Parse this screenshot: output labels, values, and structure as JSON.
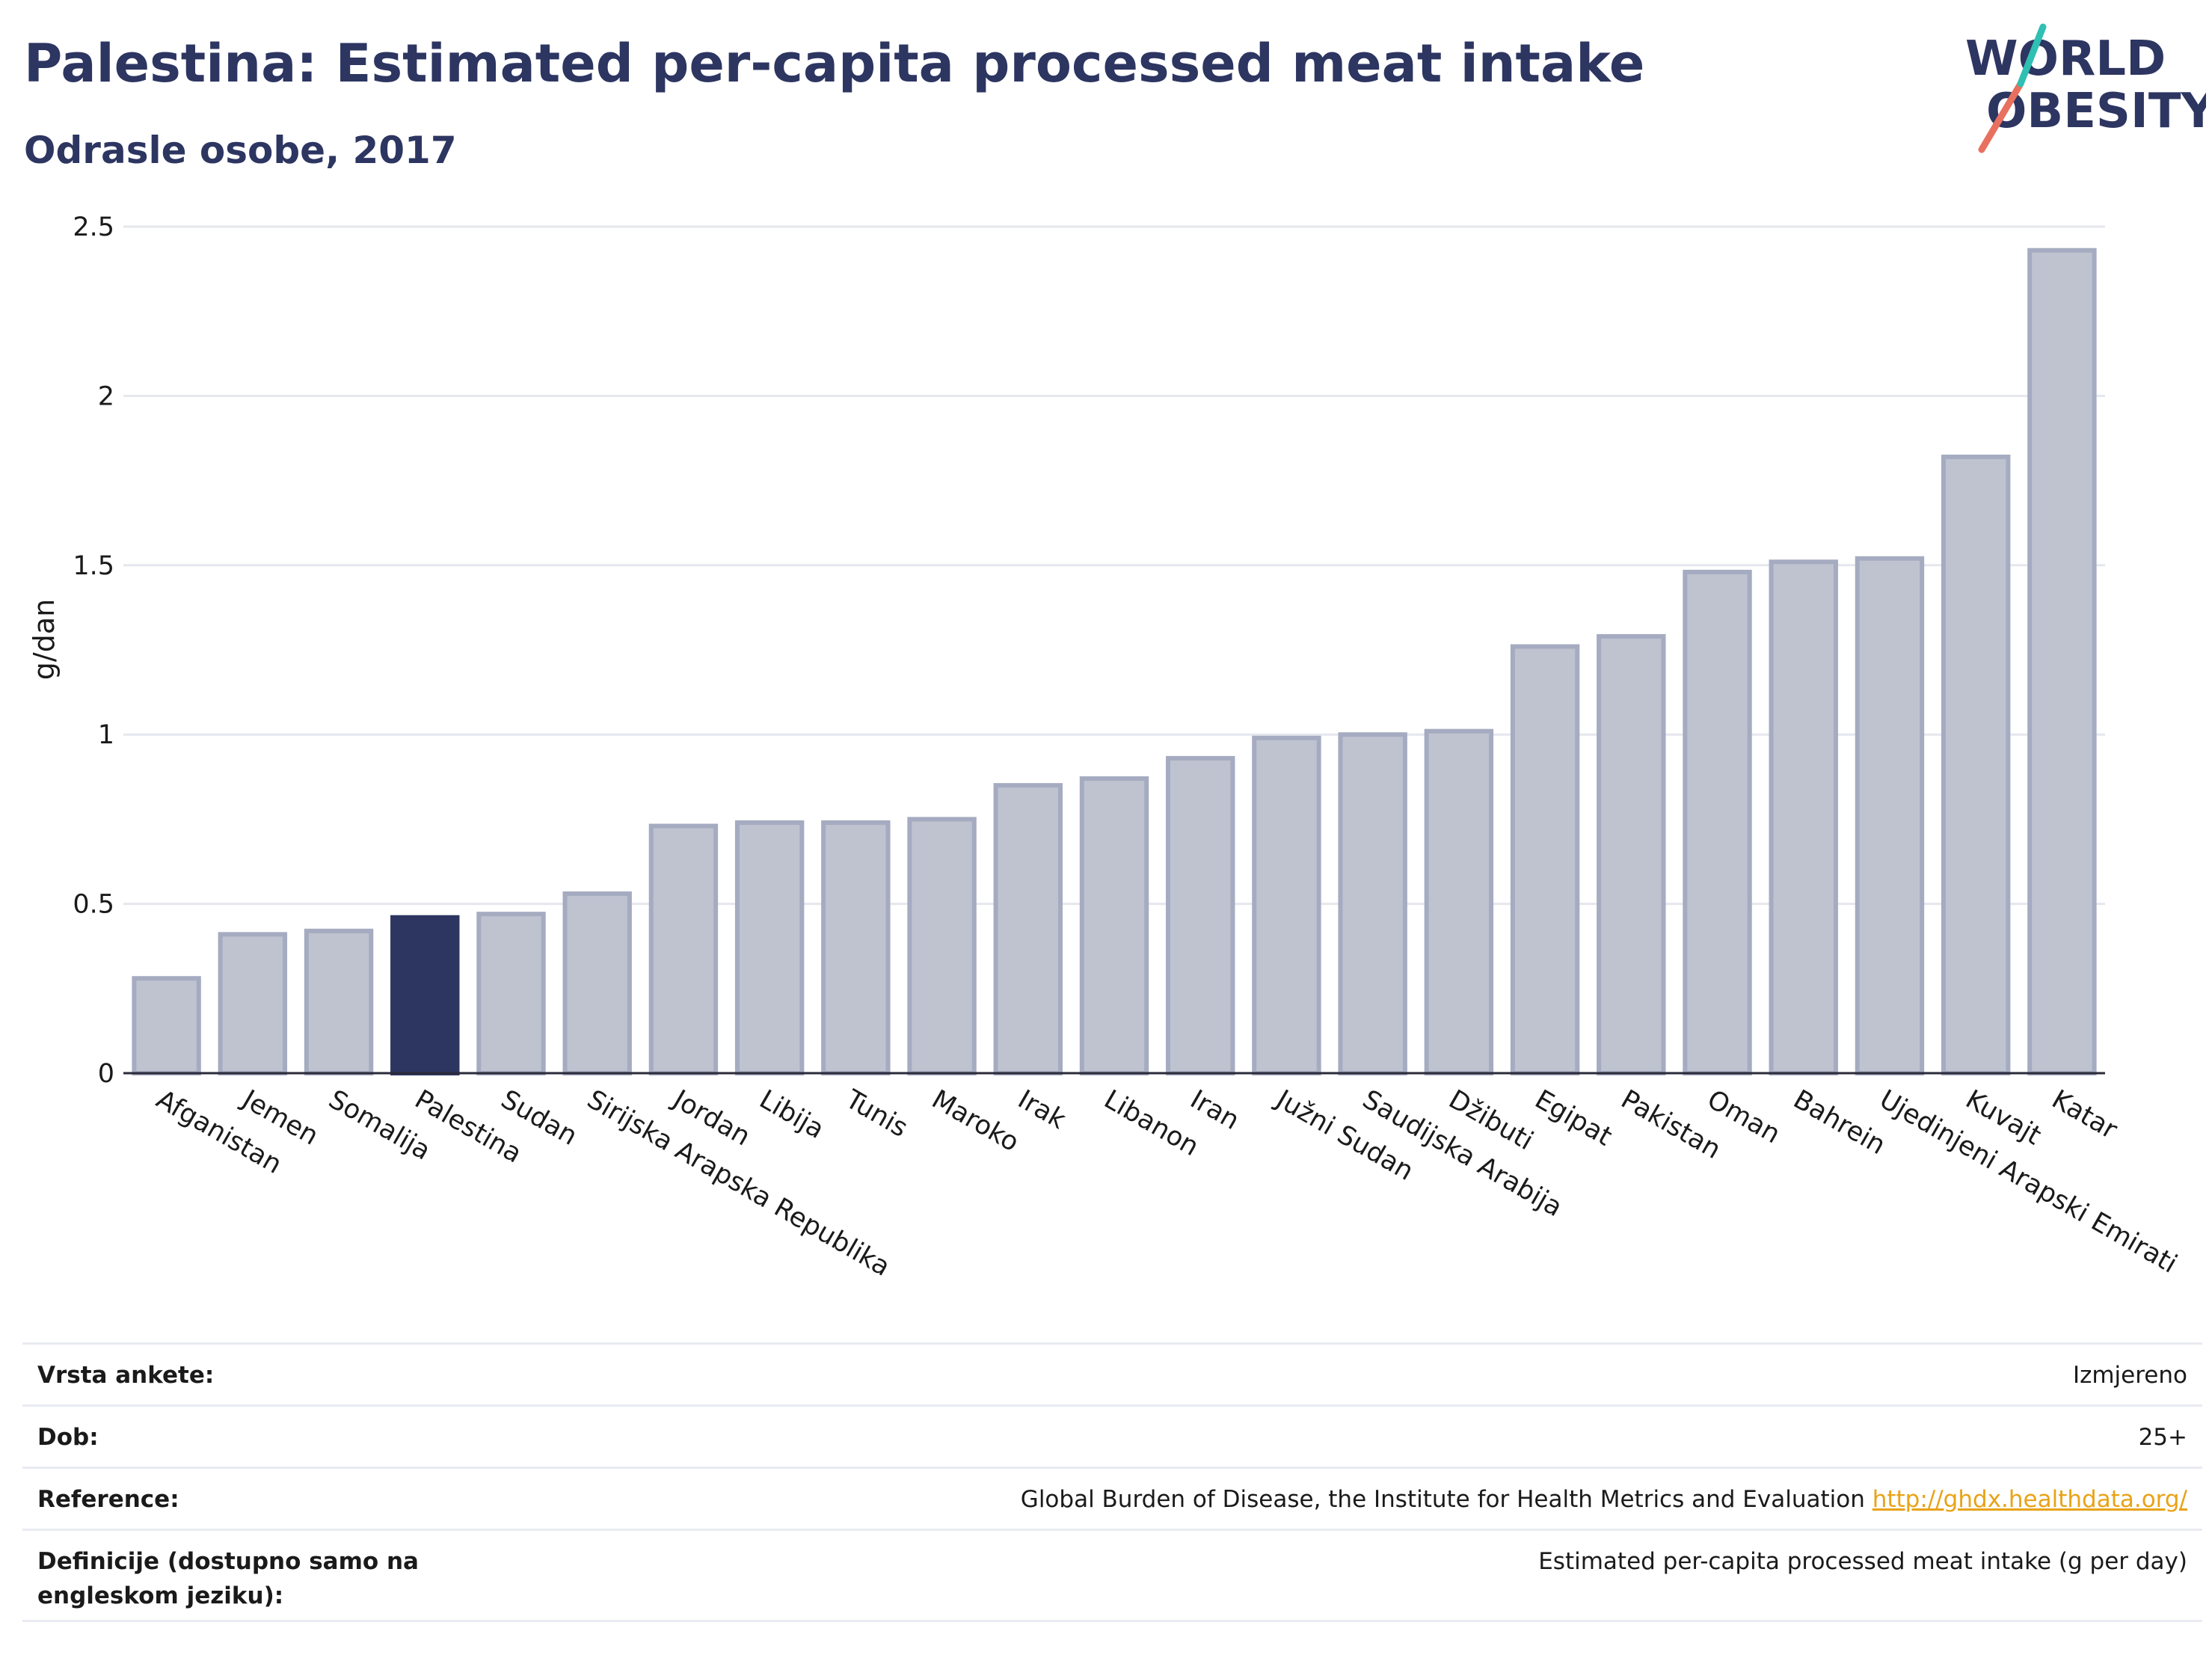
{
  "header": {
    "title": "Palestina: Estimated per-capita processed meat intake",
    "subtitle": "Odrasle osobe, 2017"
  },
  "logo": {
    "line1": "WORLD",
    "line2": "OBESITY"
  },
  "colors": {
    "title": "#2d3561",
    "bar": "#bfc3d0",
    "bar_stroke": "#a5abc0",
    "highlight": "#2d3561",
    "grid": "#e6e7ee",
    "link": "#e8a317"
  },
  "chart_data": {
    "type": "bar",
    "title": "Palestina: Estimated per-capita processed meat intake",
    "subtitle": "Odrasle osobe, 2017",
    "ylabel": "g/dan",
    "xlabel": "",
    "ylim": [
      0,
      2.5
    ],
    "yticks": [
      0,
      0.5,
      1,
      1.5,
      2,
      2.5
    ],
    "ytick_labels": [
      "0",
      "0.5",
      "1",
      "1.5",
      "2",
      "2.5"
    ],
    "grid": true,
    "highlight": "Palestina",
    "categories": [
      "Afganistan",
      "Jemen",
      "Somalija",
      "Palestina",
      "Sudan",
      "Sirijska Arapska Republika",
      "Jordan",
      "Libija",
      "Tunis",
      "Maroko",
      "Irak",
      "Libanon",
      "Iran",
      "Južni Sudan",
      "Saudijska Arabija",
      "Džibuti",
      "Egipat",
      "Pakistan",
      "Oman",
      "Bahrein",
      "Ujedinjeni Arapski Emirati",
      "Kuvajt",
      "Katar"
    ],
    "values": [
      0.28,
      0.41,
      0.42,
      0.46,
      0.47,
      0.53,
      0.73,
      0.74,
      0.74,
      0.75,
      0.85,
      0.87,
      0.93,
      0.99,
      1.0,
      1.01,
      1.26,
      1.29,
      1.48,
      1.51,
      1.52,
      1.82,
      2.43
    ]
  },
  "info": {
    "rows": [
      {
        "key": "Vrsta ankete:",
        "value": "Izmjereno"
      },
      {
        "key": "Dob:",
        "value": "25+"
      },
      {
        "key": "Reference:",
        "value": "Global Burden of Disease, the Institute for Health Metrics and Evaluation",
        "link": "http://ghdx.healthdata.org/"
      },
      {
        "key": "Definicije (dostupno samo na engleskom jeziku):",
        "value": "Estimated per-capita processed meat intake (g per day)"
      }
    ]
  }
}
